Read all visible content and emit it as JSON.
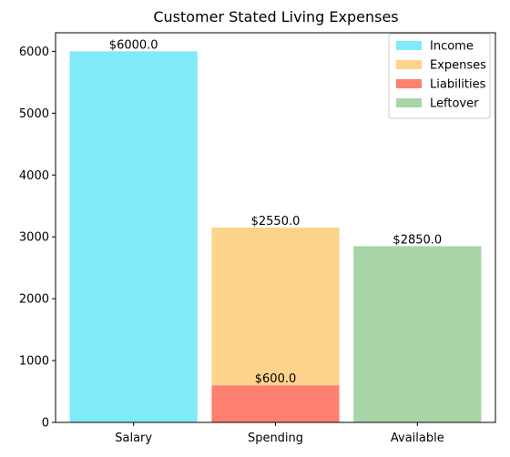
{
  "chart_data": {
    "type": "bar",
    "stacked": true,
    "title": "Customer Stated Living Expenses",
    "xlabel": "",
    "ylabel": "",
    "categories": [
      "Salary",
      "Spending",
      "Available"
    ],
    "ylim": [
      0,
      6300
    ],
    "yticks": [
      0,
      1000,
      2000,
      3000,
      4000,
      5000,
      6000
    ],
    "grid": false,
    "legend_position": "top-right",
    "series": [
      {
        "name": "Income",
        "color": "#7feaf8",
        "values": [
          6000,
          0,
          0
        ]
      },
      {
        "name": "Expenses",
        "color": "#fdd48b",
        "values": [
          0,
          2550,
          0
        ]
      },
      {
        "name": "Liabilities",
        "color": "#fd8070",
        "values": [
          0,
          600,
          0
        ]
      },
      {
        "name": "Leftover",
        "color": "#a8d5a8",
        "values": [
          0,
          0,
          2850
        ]
      }
    ],
    "data_labels": [
      {
        "text": "$6000.0",
        "category": "Salary",
        "series": "Income"
      },
      {
        "text": "$2550.0",
        "category": "Spending",
        "series": "Expenses"
      },
      {
        "text": "$600.0",
        "category": "Spending",
        "series": "Liabilities"
      },
      {
        "text": "$2850.0",
        "category": "Available",
        "series": "Leftover"
      }
    ],
    "stack_order": {
      "Spending": [
        "Liabilities",
        "Expenses"
      ]
    },
    "bar_tops": {
      "Salary": 6000,
      "Spending": 3150,
      "Available": 2850
    }
  }
}
